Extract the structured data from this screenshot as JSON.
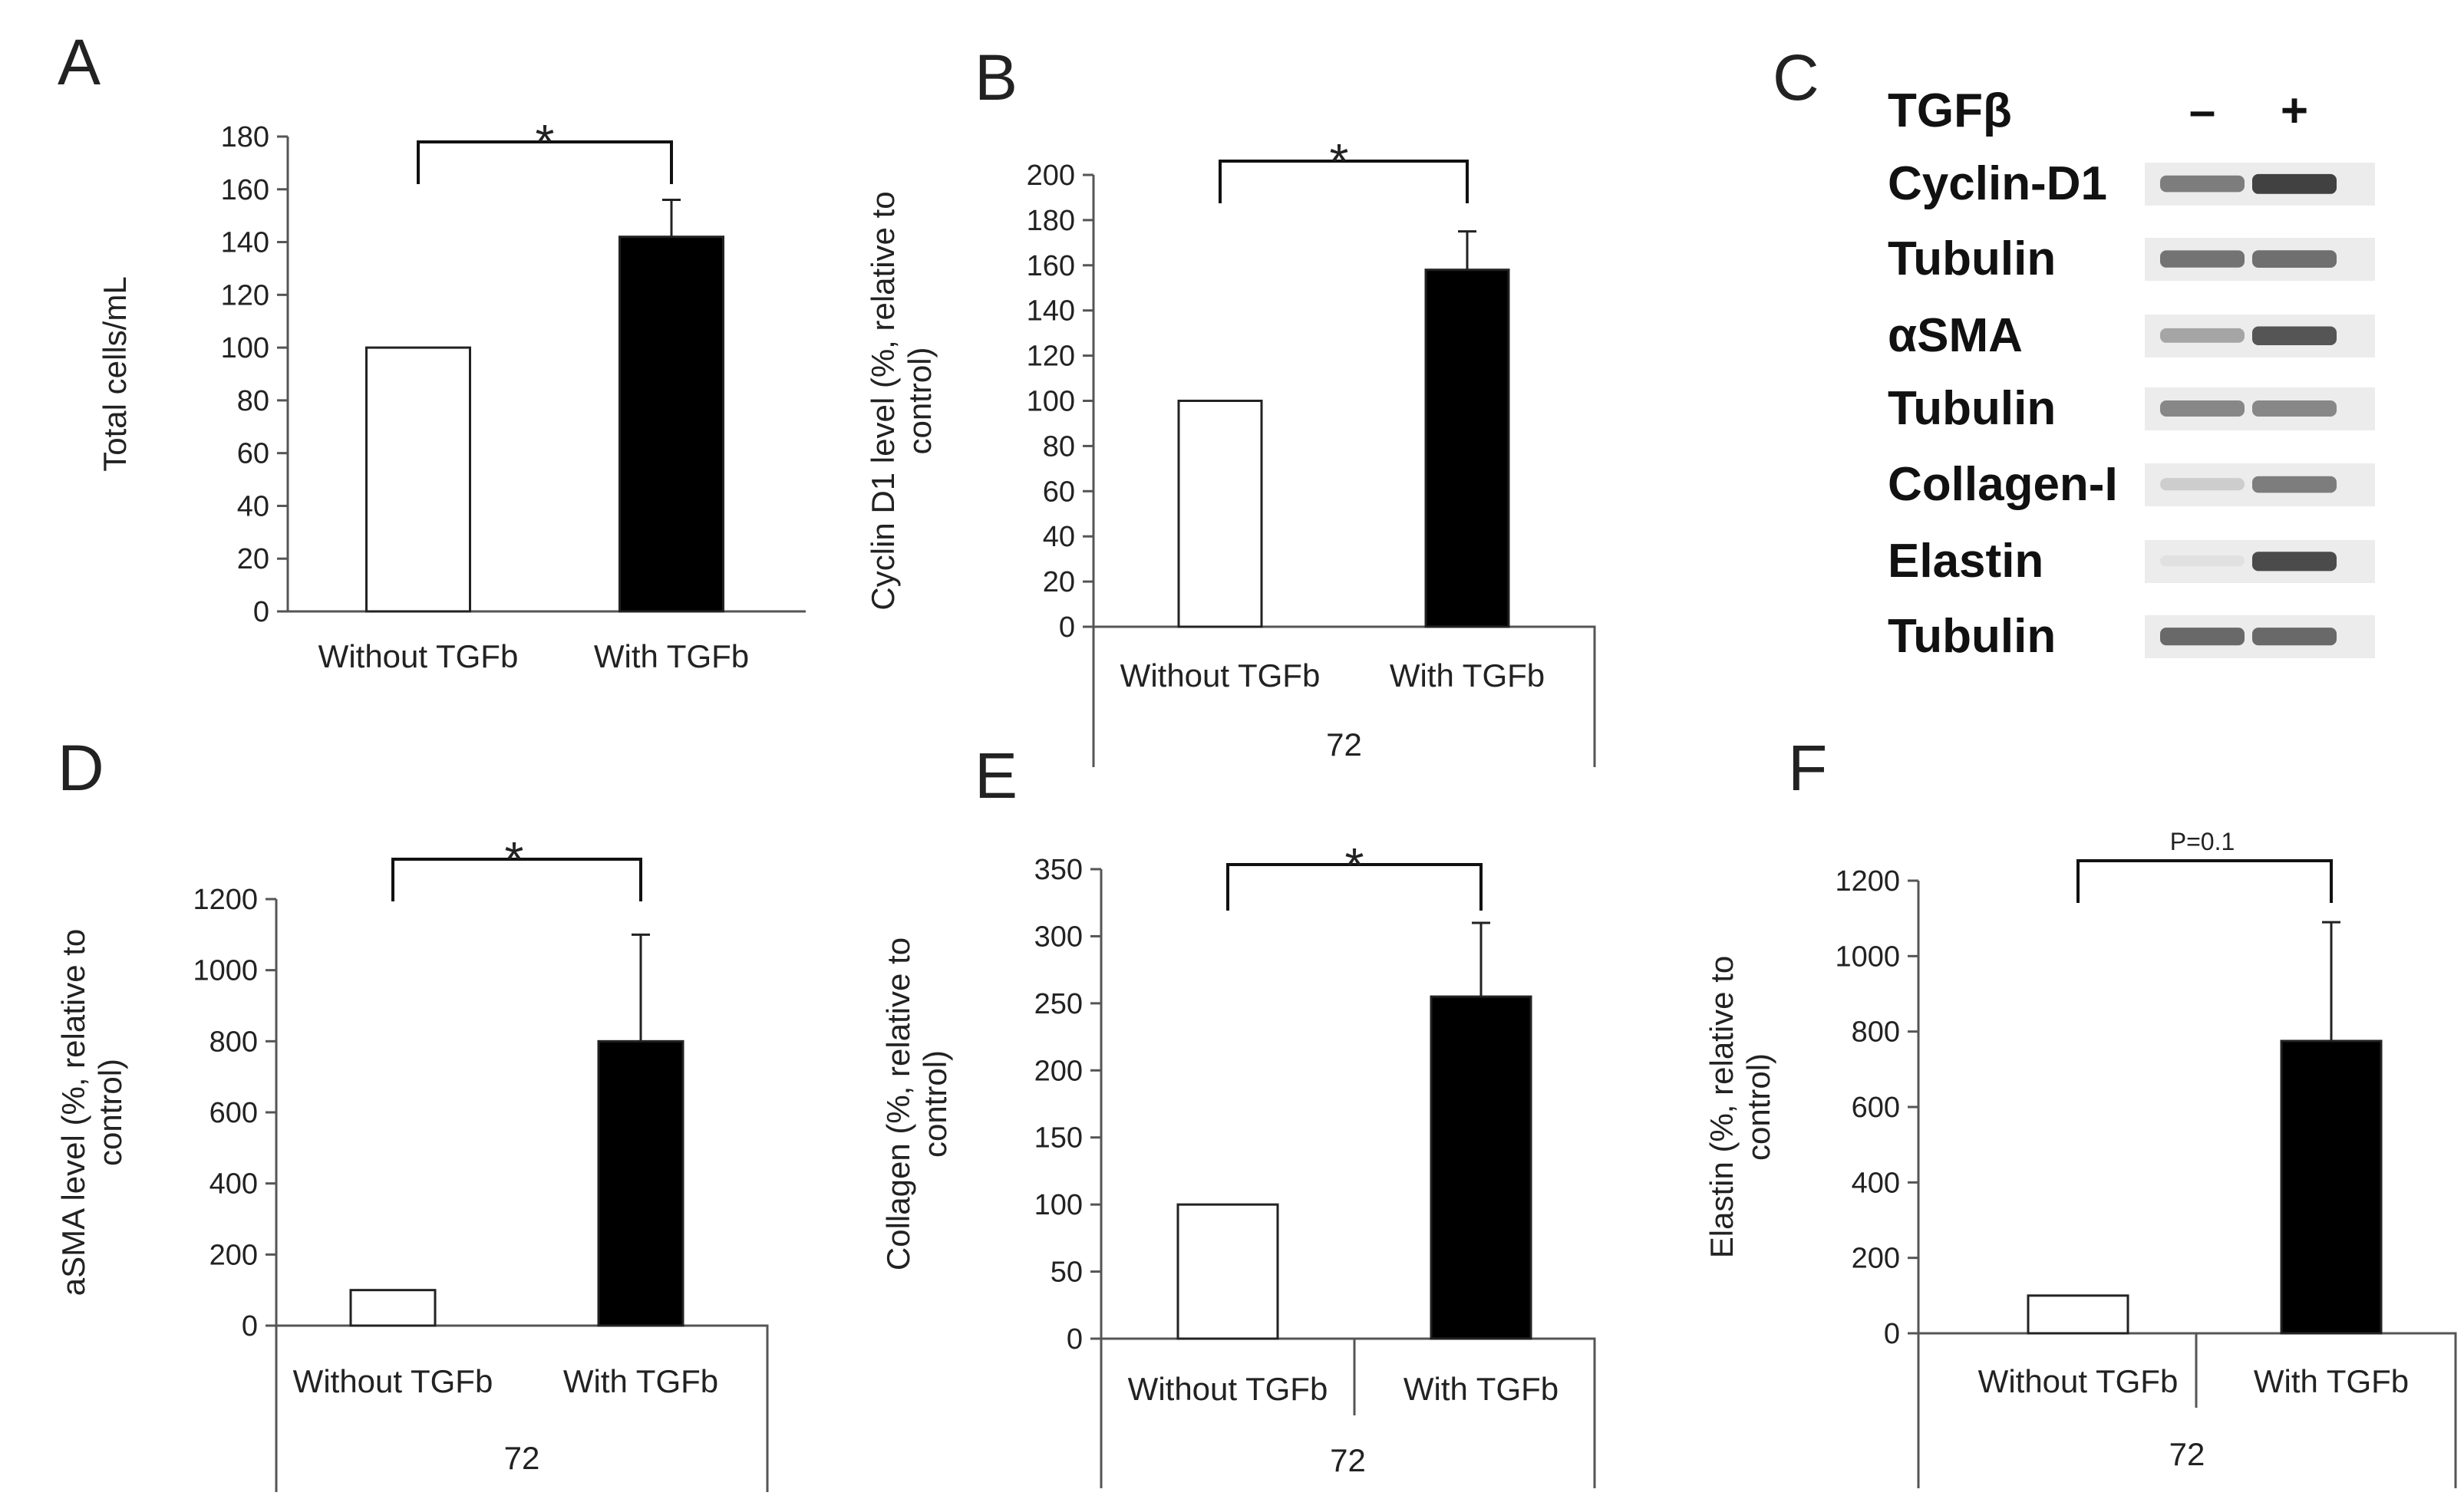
{
  "chart_data": [
    {
      "panel": "A",
      "type": "bar",
      "categories": [
        "Without TGFb",
        "With TGFb"
      ],
      "values": [
        100,
        142
      ],
      "errors": [
        0,
        14
      ],
      "colors": [
        "#ffffff",
        "#000000"
      ],
      "ylabel": "Total cells/mL",
      "xlabel": "",
      "group_label": "",
      "ylim": [
        0,
        180
      ],
      "yticks": [
        0,
        20,
        40,
        60,
        80,
        100,
        120,
        140,
        160,
        180
      ],
      "significance": "*"
    },
    {
      "panel": "B",
      "type": "bar",
      "categories": [
        "Without TGFb",
        "With TGFb"
      ],
      "values": [
        100,
        158
      ],
      "errors": [
        0,
        17
      ],
      "colors": [
        "#ffffff",
        "#000000"
      ],
      "ylabel": "Cyclin D1 level (%, relative to control)",
      "ylabel_lines": [
        "Cyclin D1 level (%, relative to",
        "control)"
      ],
      "group_label": "72",
      "ylim": [
        0,
        200
      ],
      "yticks": [
        0,
        20,
        40,
        60,
        80,
        100,
        120,
        140,
        160,
        180,
        200
      ],
      "significance": "*"
    },
    {
      "panel": "D",
      "type": "bar",
      "categories": [
        "Without TGFb",
        "With TGFb"
      ],
      "values": [
        100,
        800
      ],
      "errors": [
        0,
        300
      ],
      "colors": [
        "#ffffff",
        "#000000"
      ],
      "ylabel": "aSMA level (%, relative to control)",
      "ylabel_lines": [
        "aSMA level (%, relative to",
        "control)"
      ],
      "group_label": "72",
      "ylim": [
        0,
        1200
      ],
      "yticks": [
        0,
        200,
        400,
        600,
        800,
        1000,
        1200
      ],
      "significance": "*"
    },
    {
      "panel": "E",
      "type": "bar",
      "categories": [
        "Without TGFb",
        "With TGFb"
      ],
      "values": [
        100,
        255
      ],
      "errors": [
        0,
        55
      ],
      "colors": [
        "#ffffff",
        "#000000"
      ],
      "ylabel": "Collagen (%, relative to control)",
      "ylabel_lines": [
        "Collagen (%, relative to",
        "control)"
      ],
      "group_label": "72",
      "ylim": [
        0,
        350
      ],
      "yticks": [
        0,
        50,
        100,
        150,
        200,
        250,
        300,
        350
      ],
      "significance": "*"
    },
    {
      "panel": "F",
      "type": "bar",
      "categories": [
        "Without TGFb",
        "With TGFb"
      ],
      "values": [
        100,
        775
      ],
      "errors": [
        0,
        315
      ],
      "colors": [
        "#ffffff",
        "#000000"
      ],
      "ylabel": "Elastin (%, relative to control)",
      "ylabel_lines": [
        "Elastin (%, relative to",
        "control)"
      ],
      "group_label": "72",
      "ylim": [
        0,
        1200
      ],
      "yticks": [
        0,
        200,
        400,
        600,
        800,
        1000,
        1200
      ],
      "significance": "P=0.1"
    }
  ],
  "blot": {
    "panel": "C",
    "treatment": "TGFβ",
    "lanes": [
      "–",
      "+"
    ],
    "rows": [
      {
        "label": "Cyclin-D1",
        "intensity": [
          0.55,
          0.85
        ]
      },
      {
        "label": "Tubulin",
        "intensity": [
          0.6,
          0.62
        ]
      },
      {
        "label": "αSMA",
        "intensity": [
          0.35,
          0.75
        ]
      },
      {
        "label": "Tubulin",
        "intensity": [
          0.5,
          0.5
        ]
      },
      {
        "label": "Collagen-I",
        "intensity": [
          0.15,
          0.55
        ]
      },
      {
        "label": "Elastin",
        "intensity": [
          0.05,
          0.8
        ]
      },
      {
        "label": "Tubulin",
        "intensity": [
          0.65,
          0.65
        ]
      }
    ]
  }
}
